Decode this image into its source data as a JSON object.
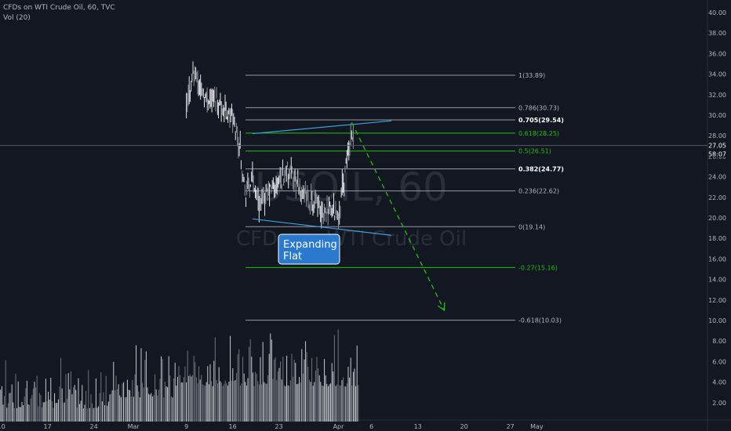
{
  "header": {
    "symbol_line": "CFDs on WTI Crude Oil, 60, TVC",
    "volume_line": "Vol (20)"
  },
  "watermark": {
    "ticker": "USOIL, 60",
    "name": "CFDs on WTI Crude Oil"
  },
  "colors": {
    "background": "#131722",
    "axis_text": "#b2b5be",
    "fib_white": "#d1d4dc",
    "fib_green": "#20c010",
    "trend_blue": "#3ca0e0",
    "callout_bg": "#2979ce",
    "price_label_bg": "#131722"
  },
  "callout": {
    "line1": "Expanding",
    "line2": "Flat"
  },
  "price_labels": {
    "current_price": "27.05",
    "countdown": "58:07"
  },
  "chart_data": {
    "type": "candlestick",
    "title": "CFDs on WTI Crude Oil, 60, TVC",
    "y_axis": {
      "ticks": [
        2.0,
        4.0,
        6.0,
        8.0,
        10.0,
        12.0,
        14.0,
        16.0,
        18.0,
        20.0,
        22.0,
        24.0,
        26.0,
        28.0,
        30.0,
        32.0,
        34.0,
        36.0,
        38.0,
        40.0
      ],
      "tick_labels": [
        "2.00",
        "4.00",
        "6.00",
        "8.00",
        "10.00",
        "12.00",
        "14.00",
        "16.00",
        "18.00",
        "20.00",
        "22.00",
        "24.00",
        "26.00",
        "28.00",
        "30.00",
        "32.00",
        "34.00",
        "36.00",
        "38.00",
        "40.00"
      ]
    },
    "x_axis": {
      "tick_labels": [
        "10",
        "17",
        "24",
        "Mar",
        "9",
        "16",
        "23",
        "Apr",
        "6",
        "13",
        "20",
        "27",
        "May"
      ]
    },
    "current_price": 27.05,
    "price_path": [
      {
        "date": "Mar 9",
        "price": 30.5
      },
      {
        "date": "Mar 10",
        "price": 34.3
      },
      {
        "date": "Mar 11",
        "price": 33.0
      },
      {
        "date": "Mar 12",
        "price": 31.5
      },
      {
        "date": "Mar 13",
        "price": 32.0
      },
      {
        "date": "Mar 16",
        "price": 29.5
      },
      {
        "date": "Mar 17",
        "price": 27.5
      },
      {
        "date": "Mar 18",
        "price": 22.0
      },
      {
        "date": "Mar 19",
        "price": 24.0
      },
      {
        "date": "Mar 20",
        "price": 21.5
      },
      {
        "date": "Mar 23",
        "price": 23.5
      },
      {
        "date": "Mar 24",
        "price": 24.5
      },
      {
        "date": "Mar 25",
        "price": 24.0
      },
      {
        "date": "Mar 26",
        "price": 22.8
      },
      {
        "date": "Mar 27",
        "price": 22.0
      },
      {
        "date": "Mar 30",
        "price": 20.5
      },
      {
        "date": "Mar 31",
        "price": 20.8
      },
      {
        "date": "Apr 1",
        "price": 20.5
      },
      {
        "date": "Apr 2",
        "price": 24.5
      },
      {
        "date": "Apr 3",
        "price": 28.5
      },
      {
        "date": "Apr 3 (close)",
        "price": 27.05
      }
    ],
    "fib_levels": [
      {
        "ratio": "1",
        "value": 33.89,
        "label": "1(33.89)",
        "color": "white",
        "bold": false
      },
      {
        "ratio": "0.786",
        "value": 30.73,
        "label": "0.786(30.73)",
        "color": "white",
        "bold": false
      },
      {
        "ratio": "0.705",
        "value": 29.54,
        "label": "0.705(29.54)",
        "color": "white",
        "bold": true
      },
      {
        "ratio": "0.618",
        "value": 28.25,
        "label": "0.618(28.25)",
        "color": "green",
        "bold": false
      },
      {
        "ratio": "0.5",
        "value": 26.51,
        "label": "0.5(26.51)",
        "color": "green",
        "bold": false
      },
      {
        "ratio": "0.382",
        "value": 24.77,
        "label": "0.382(24.77)",
        "color": "white",
        "bold": true
      },
      {
        "ratio": "0.236",
        "value": 22.62,
        "label": "0.236(22.62)",
        "color": "white",
        "bold": false
      },
      {
        "ratio": "0",
        "value": 19.14,
        "label": "0(19.14)",
        "color": "white",
        "bold": false
      },
      {
        "ratio": "-0.27",
        "value": 15.16,
        "label": "-0.27(15.16)",
        "color": "green",
        "bold": false
      },
      {
        "ratio": "-0.618",
        "value": 10.03,
        "label": "-0.618(10.03)",
        "color": "white",
        "bold": false
      }
    ],
    "trendlines": [
      {
        "name": "upper",
        "from": {
          "date": "Mar 19",
          "price": 28.2
        },
        "to": {
          "date": "Apr 9",
          "price": 29.45
        }
      },
      {
        "name": "lower",
        "from": {
          "date": "Mar 19",
          "price": 19.9
        },
        "to": {
          "date": "Apr 9",
          "price": 18.3
        }
      }
    ],
    "projection": {
      "from": {
        "date": "Apr 3",
        "price": 29.3
      },
      "to": {
        "date": "Apr 17",
        "price": 11.0
      }
    },
    "volume": {
      "name": "Vol (20)",
      "range": "Feb 7 – Apr 3"
    }
  }
}
